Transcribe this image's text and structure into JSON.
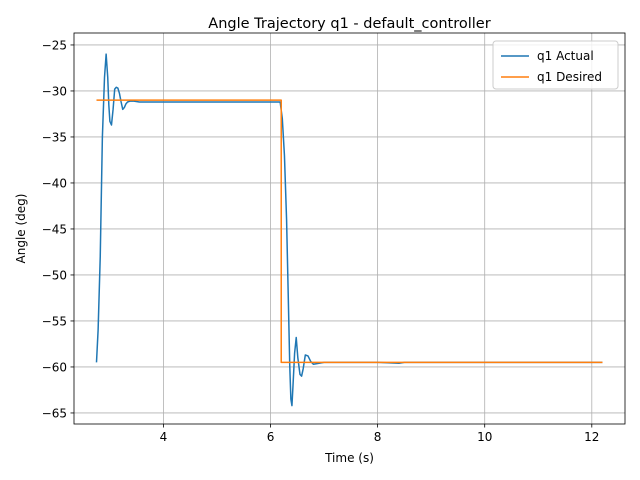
{
  "chart_data": {
    "type": "line",
    "title": "Angle Trajectory q1 - default_controller",
    "xlabel": "Time (s)",
    "ylabel": "Angle (deg)",
    "xlim": [
      2.33,
      12.62
    ],
    "ylim": [
      -66.2,
      -23.7
    ],
    "xticks": [
      4,
      6,
      8,
      10,
      12
    ],
    "yticks": [
      -25,
      -30,
      -35,
      -40,
      -45,
      -50,
      -55,
      -60,
      -65
    ],
    "grid": true,
    "legend_position": "top-right",
    "series": [
      {
        "name": "q1 Actual",
        "color": "#1f77b4",
        "x": [
          2.75,
          2.78,
          2.82,
          2.86,
          2.9,
          2.93,
          2.96,
          2.98,
          3.0,
          3.03,
          3.06,
          3.09,
          3.12,
          3.15,
          3.18,
          3.21,
          3.24,
          3.27,
          3.3,
          3.33,
          3.38,
          3.45,
          3.55,
          3.7,
          4.0,
          5.0,
          6.0,
          6.18,
          6.22,
          6.26,
          6.3,
          6.33,
          6.36,
          6.38,
          6.4,
          6.42,
          6.45,
          6.48,
          6.51,
          6.55,
          6.58,
          6.61,
          6.65,
          6.7,
          6.75,
          6.8,
          7.0,
          8.0,
          8.4,
          8.5,
          9.0,
          10.0,
          11.0,
          12.2
        ],
        "y": [
          -59.5,
          -56.0,
          -48.0,
          -35.0,
          -28.5,
          -26.0,
          -28.5,
          -31.5,
          -33.3,
          -33.7,
          -32.0,
          -29.8,
          -29.6,
          -29.7,
          -30.3,
          -31.2,
          -32.0,
          -31.8,
          -31.4,
          -31.2,
          -31.1,
          -31.1,
          -31.2,
          -31.2,
          -31.2,
          -31.2,
          -31.2,
          -31.2,
          -33.0,
          -37.0,
          -44.0,
          -52.0,
          -60.0,
          -63.5,
          -64.2,
          -62.0,
          -58.5,
          -56.8,
          -59.0,
          -60.8,
          -61.0,
          -60.2,
          -58.7,
          -58.8,
          -59.4,
          -59.7,
          -59.5,
          -59.5,
          -59.6,
          -59.5,
          -59.5,
          -59.5,
          -59.5,
          -59.5
        ]
      },
      {
        "name": "q1 Desired",
        "color": "#ff7f0e",
        "x": [
          2.75,
          6.2,
          6.2,
          12.2
        ],
        "y": [
          -31.0,
          -31.0,
          -59.5,
          -59.5
        ]
      }
    ]
  }
}
